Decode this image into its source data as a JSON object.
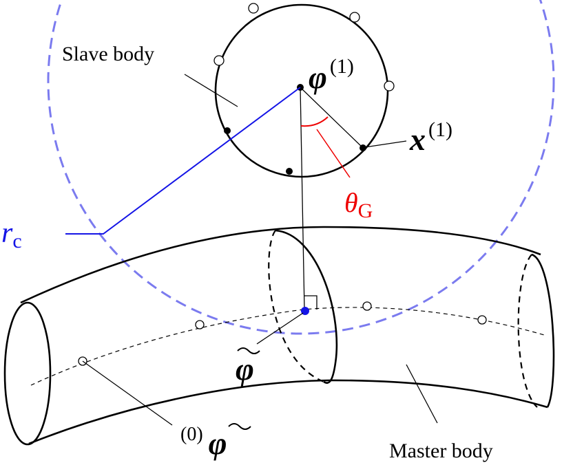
{
  "labels": {
    "slave_body": "Slave body",
    "master_body": "Master body",
    "phi1": {
      "symbol": "φ",
      "superscript": "(1)"
    },
    "x1": {
      "symbol": "x",
      "superscript": "(1)"
    },
    "theta": {
      "symbol": "θ",
      "subscript": "G"
    },
    "rc": {
      "symbol": "r",
      "subscript": "c"
    },
    "phi_tilde": {
      "symbol": "φ"
    },
    "phi0": {
      "superscript": "(0)",
      "symbol": "φ"
    }
  }
}
